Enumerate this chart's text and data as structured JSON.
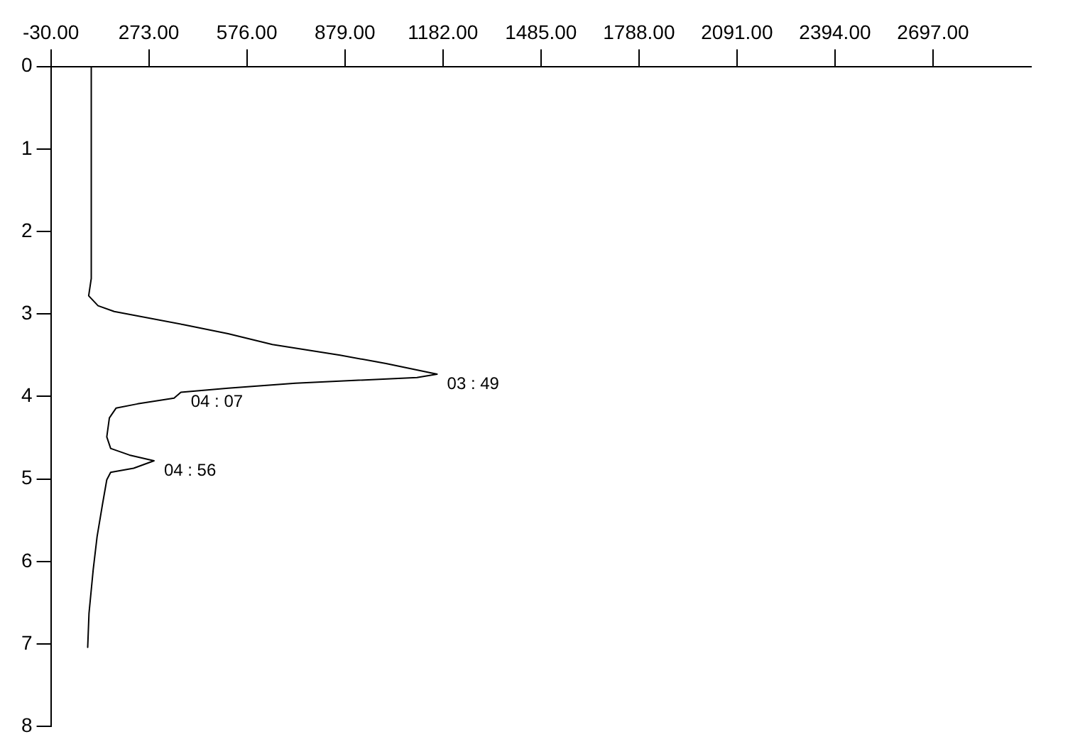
{
  "chart_data": {
    "type": "line",
    "x": [
      95,
      95,
      87,
      116,
      166,
      380,
      518,
      655,
      864,
      1006,
      1164,
      1102,
      726,
      518,
      372,
      351,
      238,
      172,
      151,
      143,
      155,
      213,
      289,
      226,
      155,
      143,
      130,
      113,
      101,
      88,
      84
    ],
    "series": [
      {
        "color": "#000000",
        "values": [
          0,
          2.57,
          2.78,
          2.9,
          2.97,
          3.13,
          3.24,
          3.37,
          3.5,
          3.6,
          3.73,
          3.77,
          3.84,
          3.9,
          3.95,
          4.02,
          4.09,
          4.14,
          4.26,
          4.49,
          4.63,
          4.71,
          4.78,
          4.87,
          4.92,
          5.01,
          5.3,
          5.7,
          6.1,
          6.63,
          7.04
        ]
      }
    ],
    "xlim": [
      -30,
      3000
    ],
    "xticks": [
      {
        "value": -30,
        "label": "-30.00"
      },
      {
        "value": 273,
        "label": "273.00"
      },
      {
        "value": 576,
        "label": "576.00"
      },
      {
        "value": 879,
        "label": "879.00"
      },
      {
        "value": 1182,
        "label": "1182.00"
      },
      {
        "value": 1485,
        "label": "1485.00"
      },
      {
        "value": 1788,
        "label": "1788.00"
      },
      {
        "value": 2091,
        "label": "2091.00"
      },
      {
        "value": 2394,
        "label": "2394.00"
      },
      {
        "value": 2697,
        "label": "2697.00"
      }
    ],
    "ylim": [
      8,
      0
    ],
    "yticks": [
      0,
      1,
      2,
      3,
      4,
      5,
      6,
      7,
      8
    ],
    "annotations": [
      {
        "text": "03 : 49",
        "x": 1164,
        "y": 3.73
      },
      {
        "text": "04 : 07",
        "x": 372,
        "y": 3.95
      },
      {
        "text": "04 : 56",
        "x": 289,
        "y": 4.78
      }
    ],
    "grid": false,
    "legend": false,
    "marker": "none",
    "line_style": "solid"
  }
}
